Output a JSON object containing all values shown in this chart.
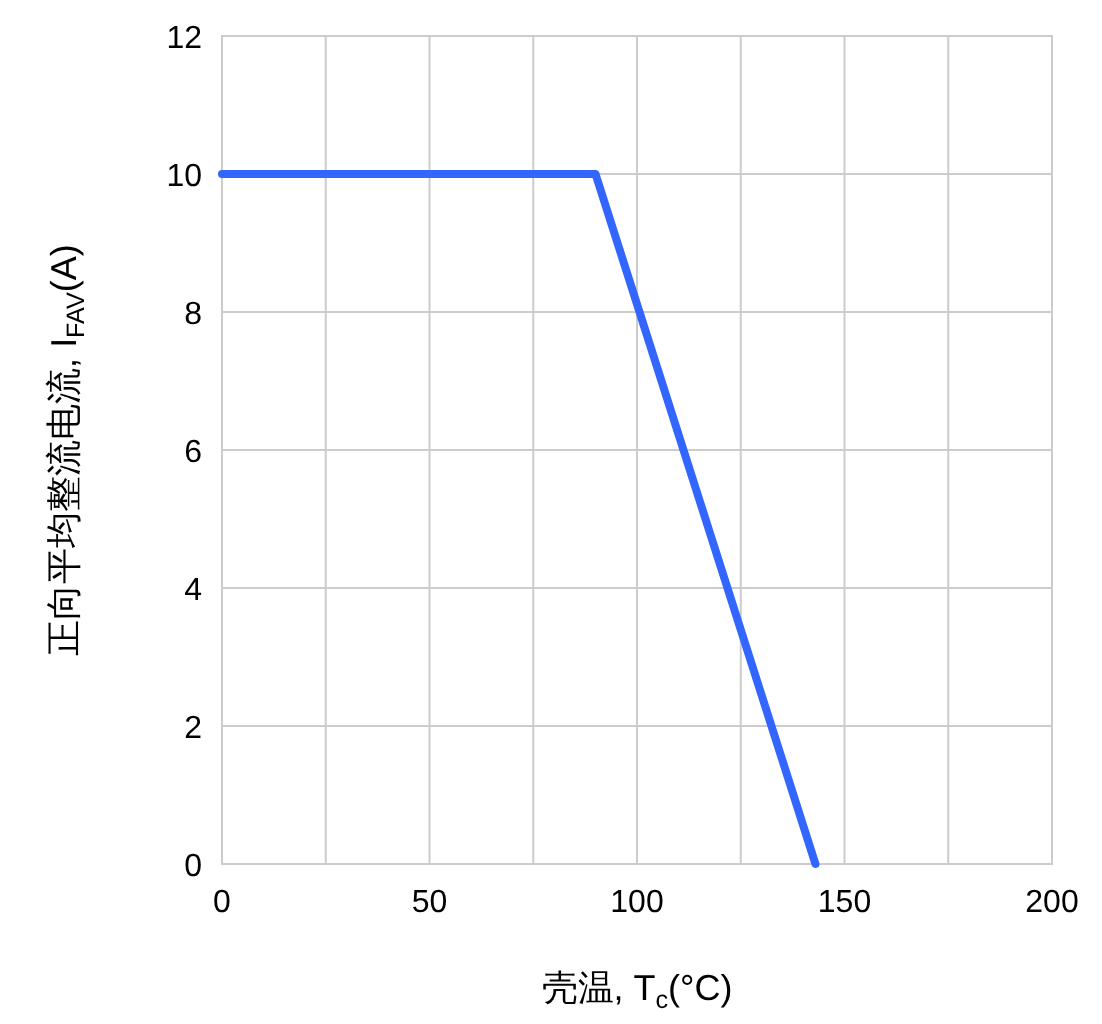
{
  "chart_data": {
    "type": "line",
    "xlabel": "壳温, T$_{c}$(°C)",
    "ylabel": "正向平均整流电流, I$_{FAV}$(A)",
    "x": [
      0,
      90,
      143
    ],
    "series": [
      {
        "color": "#3366ff",
        "values": [
          10,
          10,
          0
        ]
      }
    ],
    "xlim": [
      0,
      200
    ],
    "xticks": [
      0,
      {
        "value": 25,
        "label": null
      },
      50,
      {
        "value": 75,
        "label": null
      },
      100,
      {
        "value": 125,
        "label": null
      },
      150,
      {
        "value": 175,
        "label": null
      },
      200
    ],
    "ylim": [
      0,
      12
    ],
    "yticks": [
      0,
      2,
      4,
      6,
      8,
      10,
      12
    ],
    "grid": true,
    "marker": "none",
    "line_style": "solid"
  }
}
